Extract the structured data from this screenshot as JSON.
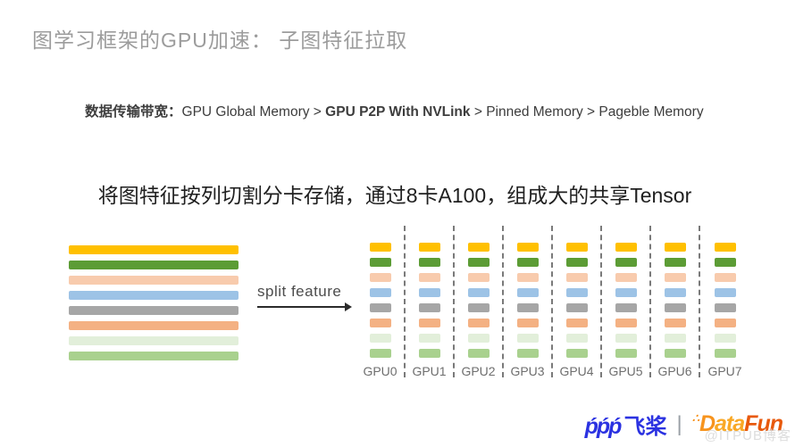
{
  "slide": {
    "title": "图学习框架的GPU加速： 子图特征拉取",
    "bandwidth": {
      "label": "数据传输带宽：",
      "segment_regular_1": "GPU Global Memory > ",
      "segment_bold": "GPU P2P With NVLink",
      "segment_regular_2": " > Pinned Memory > Pageble Memory"
    },
    "heading": "将图特征按列切割分卡存储，通过8卡A100，组成大的共享Tensor",
    "split_arrow_label": "split feature",
    "feature_rows": [
      {
        "name": "gold",
        "color": "#FFC000"
      },
      {
        "name": "green",
        "color": "#5C9C35"
      },
      {
        "name": "light-peach",
        "color": "#F8CBAD"
      },
      {
        "name": "light-blue",
        "color": "#9DC3E6"
      },
      {
        "name": "gray",
        "color": "#A6A6A6"
      },
      {
        "name": "orange",
        "color": "#F4B183"
      },
      {
        "name": "pale-green",
        "color": "#E2EFDA"
      },
      {
        "name": "medium-green",
        "color": "#A9D18E"
      }
    ],
    "gpus": [
      "GPU0",
      "GPU1",
      "GPU2",
      "GPU3",
      "GPU4",
      "GPU5",
      "GPU6",
      "GPU7"
    ],
    "footer": {
      "paddle_mark": "ṕṕṕ",
      "paddle_name": "飞桨",
      "divider": "|",
      "datafun_dots": "∴",
      "datafun_d": "D",
      "datafun_ata": "ata",
      "datafun_fun": "Fun",
      "paddle_color": "#2B32E1",
      "datafun_orange": "#F7941E",
      "datafun_mid_orange": "#F9A825",
      "datafun_deep_orange": "#E8590C"
    },
    "watermark": "@ITPUB博客"
  }
}
